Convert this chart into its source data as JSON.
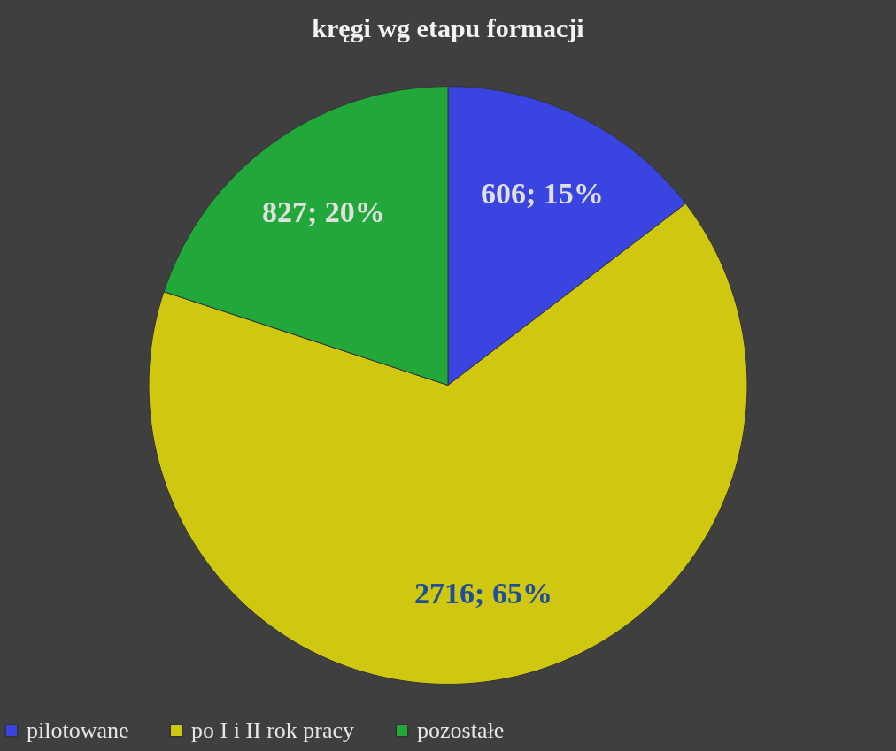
{
  "chart_data": {
    "type": "pie",
    "title": "kręgi wg etapu formacji",
    "categories": [
      "pilotowane",
      "po I i II rok pracy",
      "pozostałe"
    ],
    "values": [
      606,
      2716,
      827
    ],
    "colors": [
      "#3a44e0",
      "#d0c810",
      "#22a83a"
    ],
    "value_labels": [
      "606; 15%",
      "2716; 65%",
      "827; 20%"
    ],
    "legend": "bottom"
  }
}
